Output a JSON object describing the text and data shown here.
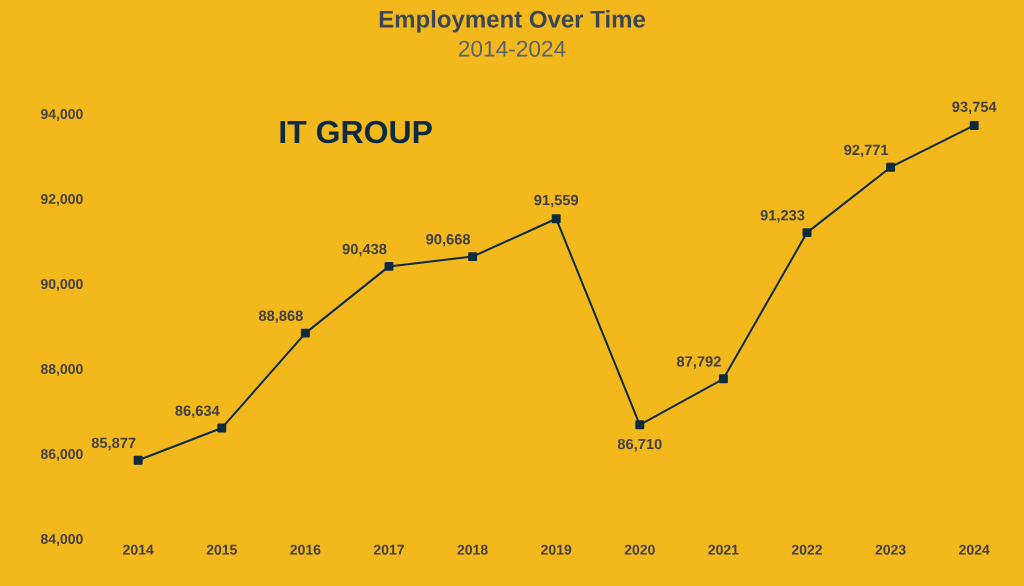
{
  "chart_data": {
    "type": "line",
    "title": "Employment Over Time",
    "subtitle": "2014-2024",
    "annotations": [
      "IT GROUP"
    ],
    "categories": [
      "2014",
      "2015",
      "2016",
      "2017",
      "2018",
      "2019",
      "2020",
      "2021",
      "2022",
      "2023",
      "2024"
    ],
    "series": [
      {
        "color": "#0d2b3e",
        "values": [
          85877,
          86634,
          88868,
          90438,
          90668,
          91559,
          86710,
          87792,
          91233,
          92771,
          93754
        ]
      }
    ],
    "ylim": [
      84000,
      94000
    ],
    "yticks": [
      {
        "value": 84000,
        "label": "84,000"
      },
      {
        "value": 86000,
        "label": "86,000"
      },
      {
        "value": 88000,
        "label": "88,000"
      },
      {
        "value": 90000,
        "label": "90,000"
      },
      {
        "value": 92000,
        "label": "92,000"
      },
      {
        "value": 94000,
        "label": "94,000"
      }
    ],
    "value_labels": [
      "85,877",
      "86,634",
      "88,868",
      "90,438",
      "90,668",
      "91,559",
      "86,710",
      "87,792",
      "91,233",
      "92,771",
      "93,754"
    ],
    "marker": "square",
    "line_style": "solid"
  }
}
